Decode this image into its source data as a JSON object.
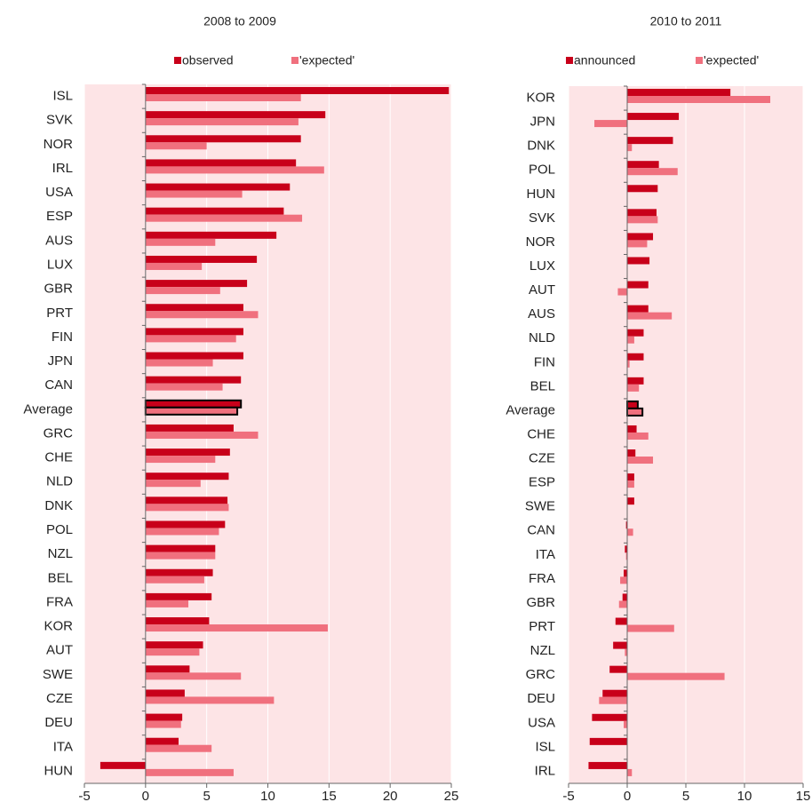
{
  "chart_data": [
    {
      "type": "bar",
      "orientation": "horizontal",
      "title": "2008 to 2009",
      "categories": [
        "ISL",
        "SVK",
        "NOR",
        "IRL",
        "USA",
        "ESP",
        "AUS",
        "LUX",
        "GBR",
        "PRT",
        "FIN",
        "JPN",
        "CAN",
        "Average",
        "GRC",
        "CHE",
        "NLD",
        "DNK",
        "POL",
        "NZL",
        "BEL",
        "FRA",
        "KOR",
        "AUT",
        "SWE",
        "CZE",
        "DEU",
        "ITA",
        "HUN"
      ],
      "series": [
        {
          "name": "observed",
          "color": "#c8001a",
          "values": [
            24.8,
            14.7,
            12.7,
            12.3,
            11.8,
            11.3,
            10.7,
            9.1,
            8.3,
            8.0,
            8.0,
            8.0,
            7.8,
            7.8,
            7.2,
            6.9,
            6.8,
            6.7,
            6.5,
            5.7,
            5.5,
            5.4,
            5.2,
            4.7,
            3.6,
            3.2,
            3.0,
            2.7,
            -3.7
          ]
        },
        {
          "name": "'expected'",
          "color": "#f0707e",
          "values": [
            12.7,
            12.5,
            5.0,
            14.6,
            7.9,
            12.8,
            5.7,
            4.6,
            6.1,
            9.2,
            7.4,
            5.5,
            6.3,
            7.5,
            9.2,
            5.7,
            4.5,
            6.8,
            6.0,
            5.7,
            4.8,
            3.5,
            14.9,
            4.4,
            7.8,
            10.5,
            2.9,
            5.4,
            7.2
          ]
        }
      ],
      "outlined_category": "Average",
      "xlim": [
        -5,
        25
      ],
      "xticks": [
        -5,
        0,
        5,
        10,
        15,
        20,
        25
      ],
      "grid": true,
      "background": "#fde4e6"
    },
    {
      "type": "bar",
      "orientation": "horizontal",
      "title": "2010 to 2011",
      "categories": [
        "KOR",
        "JPN",
        "DNK",
        "POL",
        "HUN",
        "SVK",
        "NOR",
        "LUX",
        "AUT",
        "AUS",
        "NLD",
        "FIN",
        "BEL",
        "Average",
        "CHE",
        "CZE",
        "ESP",
        "SWE",
        "CAN",
        "ITA",
        "FRA",
        "GBR",
        "PRT",
        "NZL",
        "GRC",
        "DEU",
        "USA",
        "ISL",
        "IRL"
      ],
      "series": [
        {
          "name": "announced",
          "color": "#c8001a",
          "values": [
            8.8,
            4.4,
            3.9,
            2.7,
            2.6,
            2.5,
            2.2,
            1.9,
            1.8,
            1.8,
            1.4,
            1.4,
            1.4,
            0.9,
            0.8,
            0.7,
            0.6,
            0.6,
            -0.1,
            -0.2,
            -0.3,
            -0.4,
            -1.0,
            -1.2,
            -1.5,
            -2.1,
            -3.0,
            -3.2,
            -3.3
          ]
        },
        {
          "name": "'expected'",
          "color": "#f0707e",
          "values": [
            12.2,
            -2.8,
            0.4,
            4.3,
            0,
            2.6,
            1.7,
            0,
            -0.8,
            3.8,
            0.6,
            0.2,
            1.0,
            1.3,
            1.8,
            2.2,
            0.6,
            0,
            0.5,
            -0.1,
            -0.6,
            -0.7,
            4.0,
            -0.2,
            8.3,
            -2.4,
            -0.3,
            0,
            0.4
          ]
        }
      ],
      "outlined_category": "Average",
      "xlim": [
        -5,
        15
      ],
      "xticks": [
        -5,
        0,
        5,
        10,
        15
      ],
      "grid": true,
      "background": "#fde4e6"
    }
  ]
}
